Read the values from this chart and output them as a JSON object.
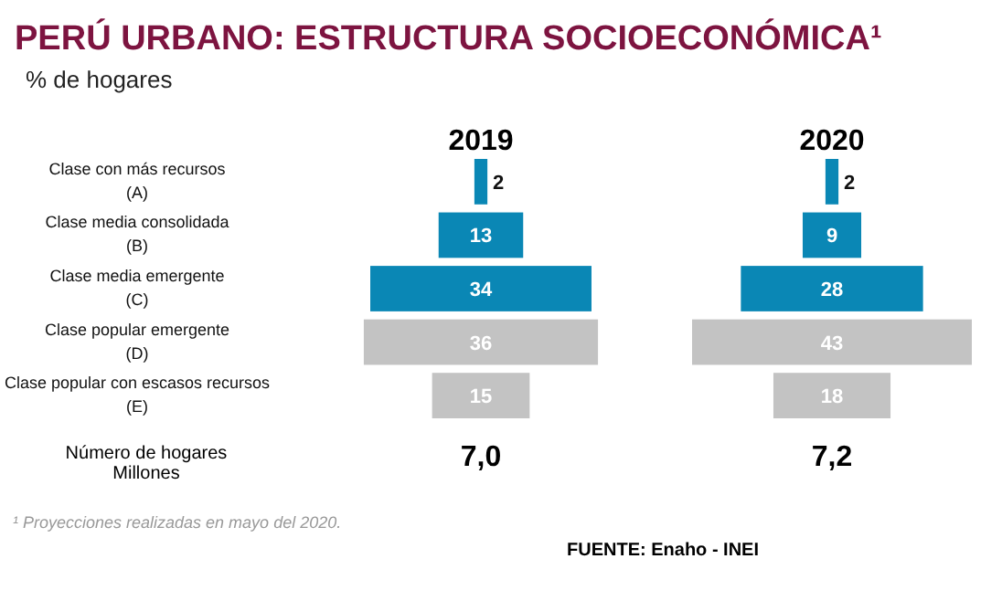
{
  "chart_data": [
    {
      "type": "other",
      "title": "PERÚ URBANO: ESTRUCTURA SOCIOECONÓMICA¹",
      "subtitle": "% de hogares",
      "annotations": [
        "Número de hogares",
        "Millones",
        "¹ Proyecciones realizadas en mayo del 2020.",
        "FUENTE: Enaho - INEI"
      ]
    },
    {
      "type": "other",
      "title": "2019",
      "categories": [
        "Clase con más recursos (A)",
        "Clase media consolidada (B)",
        "Clase media emergente (C)",
        "Clase popular emergente (D)",
        "Clase popular con escasos recursos (E)"
      ],
      "values": [
        2,
        13,
        34,
        36,
        15
      ],
      "colors": [
        "#0a87b5",
        "#0a87b5",
        "#0a87b5",
        "#c3c3c3",
        "#c3c3c3"
      ],
      "data_labels": true,
      "annotations": [
        "7,0"
      ]
    },
    {
      "type": "other",
      "title": "2020",
      "values": [
        2,
        9,
        28,
        43,
        18
      ],
      "colors": [
        "#0a87b5",
        "#0a87b5",
        "#0a87b5",
        "#c3c3c3",
        "#c3c3c3"
      ],
      "data_labels": true,
      "annotations": [
        "7,2"
      ]
    }
  ]
}
